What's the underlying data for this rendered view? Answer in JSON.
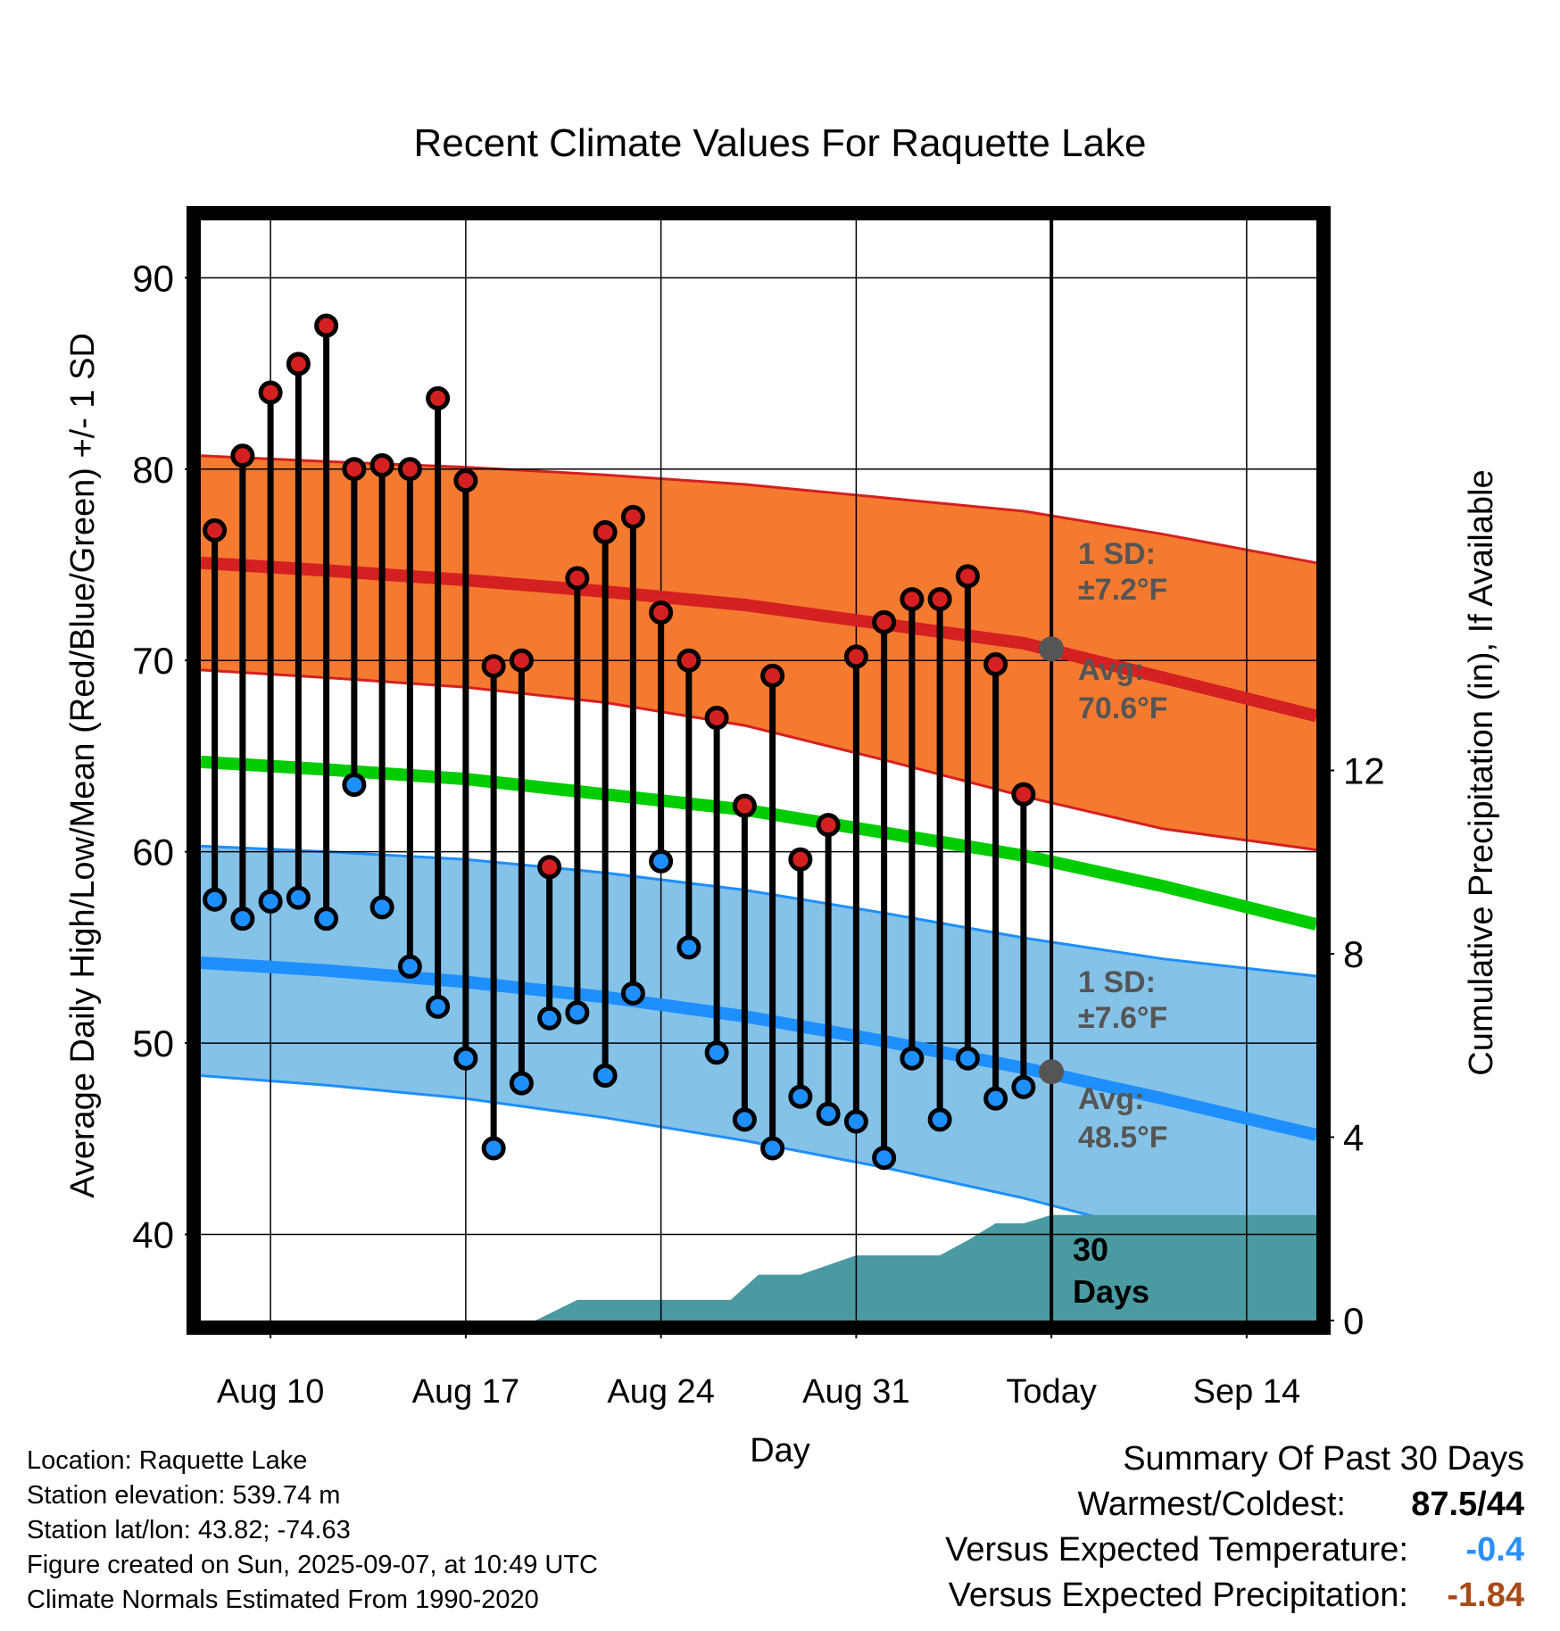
{
  "chart_data": {
    "type": "line",
    "title": "Recent Climate Values For Raquette Lake",
    "xlabel": "Day",
    "ylabel": "Average Daily High/Low/Mean (Red/Blue/Green) +/- 1 SD",
    "y2label": "Cumulative Precipitation (in), If Available",
    "ylim": [
      35.5,
      93
    ],
    "y2lim": [
      0,
      24
    ],
    "y_ticks": [
      40,
      50,
      60,
      70,
      80,
      90
    ],
    "y2_ticks": [
      0,
      4,
      8,
      12
    ],
    "x_ticks": [
      {
        "day": 3,
        "label": "Aug 10"
      },
      {
        "day": 10,
        "label": "Aug 17"
      },
      {
        "day": 17,
        "label": "Aug 24"
      },
      {
        "day": 24,
        "label": "Aug 31"
      },
      {
        "day": 31,
        "label": "Today"
      },
      {
        "day": 38,
        "label": "Sep 14"
      }
    ],
    "xlim": [
      0.5,
      40.5
    ],
    "grid": true,
    "today_day": 31,
    "days": [
      1,
      2,
      3,
      4,
      5,
      6,
      7,
      8,
      9,
      10,
      11,
      12,
      13,
      14,
      15,
      16,
      17,
      18,
      19,
      20,
      21,
      22,
      23,
      24,
      25,
      26,
      27,
      28,
      29,
      30
    ],
    "highs": [
      76.8,
      80.7,
      84.0,
      85.5,
      87.5,
      80.0,
      80.2,
      80.0,
      83.7,
      79.4,
      69.7,
      70.0,
      59.2,
      74.3,
      76.7,
      77.5,
      72.5,
      70.0,
      67.0,
      62.4,
      69.2,
      59.6,
      61.4,
      70.2,
      72.0,
      73.2,
      73.2,
      74.4,
      69.8,
      63.0
    ],
    "lows": [
      57.5,
      56.5,
      57.4,
      57.6,
      56.5,
      63.5,
      57.1,
      54.0,
      51.9,
      49.2,
      44.5,
      47.9,
      51.3,
      51.6,
      48.3,
      52.6,
      59.5,
      55.0,
      49.5,
      46.0,
      44.5,
      47.2,
      46.3,
      45.9,
      44.0,
      49.2,
      46.0,
      49.2,
      47.1,
      47.7
    ],
    "normal_days": [
      0.5,
      5,
      10,
      15,
      20,
      25,
      30,
      35,
      40.5
    ],
    "normal_high": [
      75.1,
      74.7,
      74.2,
      73.6,
      72.9,
      71.9,
      70.9,
      69.1,
      67.1
    ],
    "normal_high_upper": [
      80.7,
      80.4,
      80.1,
      79.7,
      79.2,
      78.5,
      77.8,
      76.6,
      75.1
    ],
    "normal_high_lower": [
      69.5,
      69.1,
      68.6,
      67.8,
      66.6,
      64.8,
      62.9,
      61.2,
      60.1
    ],
    "normal_mean": [
      64.7,
      64.3,
      63.8,
      63.0,
      62.2,
      61.0,
      59.8,
      58.2,
      56.2
    ],
    "normal_low": [
      54.2,
      53.8,
      53.2,
      52.4,
      51.4,
      50.1,
      48.7,
      47.1,
      45.2
    ],
    "normal_low_upper": [
      60.3,
      60.0,
      59.6,
      58.9,
      58.0,
      56.8,
      55.5,
      54.4,
      53.5
    ],
    "normal_low_lower": [
      48.3,
      47.8,
      47.1,
      46.1,
      44.9,
      43.5,
      41.9,
      40.0,
      37.0
    ],
    "precip_days": [
      12.5,
      14,
      15,
      16,
      17,
      18,
      19.5,
      20.5,
      21,
      22,
      24,
      24.5,
      25,
      26,
      27,
      28,
      29,
      30,
      31,
      40.5
    ],
    "precip_cum": [
      0,
      0.45,
      0.45,
      0.45,
      0.45,
      0.45,
      0.45,
      1.0,
      1.0,
      1.0,
      1.42,
      1.42,
      1.42,
      1.42,
      1.42,
      1.75,
      2.12,
      2.12,
      2.3,
      2.3
    ],
    "annotations": {
      "high_sd_line1": "1 SD:",
      "high_sd_line2": "±7.2°F",
      "high_avg_line1": "Avg:",
      "high_avg_line2": "70.6°F",
      "low_sd_line1": "1 SD:",
      "low_sd_line2": "±7.6°F",
      "low_avg_line1": "Avg:",
      "low_avg_line2": "48.5°F",
      "days_line1": "30",
      "days_line2": "Days"
    },
    "today_high_avg": 70.6,
    "today_low_avg": 48.5
  },
  "colors": {
    "high_band": "#f47a30",
    "high_line": "#d42020",
    "low_band": "#84c2e8",
    "low_line": "#1e8fff",
    "mean_line": "#00cc00",
    "precip": "#4a9aa2",
    "high_dot": "#d42020",
    "low_dot": "#1e8fff",
    "annotation": "#555555",
    "warm_value": "#000000",
    "temp_value": "#2a8fff",
    "precip_value": "#a84a18"
  },
  "footer": {
    "location": "Location: Raquette Lake",
    "elevation": "Station elevation: 539.74 m",
    "latlon": "Station lat/lon: 43.82; -74.63",
    "created": "Figure created on Sun, 2025-09-07, at 10:49 UTC",
    "normals": "Climate Normals Estimated From 1990-2020"
  },
  "summary": {
    "title": "Summary Of Past 30 Days",
    "warm_cold_label": "Warmest/Coldest:",
    "warm_cold_value": "87.5/44",
    "temp_label": "Versus Expected Temperature:",
    "temp_value": "-0.4",
    "precip_label": "Versus Expected Precipitation:",
    "precip_value": "-1.84"
  }
}
